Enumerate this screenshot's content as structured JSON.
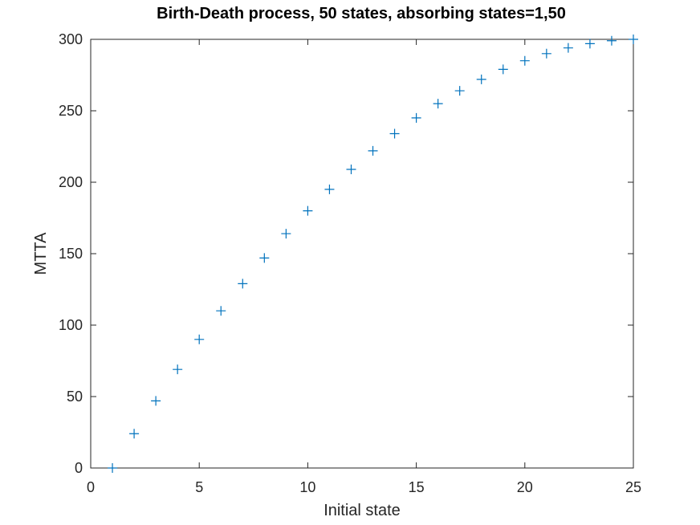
{
  "chart_data": {
    "type": "scatter",
    "title": "Birth-Death process, 50 states, absorbing states=1,50",
    "xlabel": "Initial state",
    "ylabel": "MTTA",
    "xlim": [
      0,
      25
    ],
    "ylim": [
      0,
      300
    ],
    "xticks": [
      "0",
      "5",
      "10",
      "15",
      "20",
      "25"
    ],
    "yticks": [
      "0",
      "50",
      "100",
      "150",
      "200",
      "250",
      "300"
    ],
    "marker": "plus",
    "grid": false,
    "series": [
      {
        "color": "#0072BD",
        "x": [
          1,
          2,
          3,
          4,
          5,
          6,
          7,
          8,
          9,
          10,
          11,
          12,
          13,
          14,
          15,
          16,
          17,
          18,
          19,
          20,
          21,
          22,
          23,
          24,
          25
        ],
        "y": [
          0,
          24,
          47,
          69,
          90,
          110,
          129,
          147,
          164,
          180,
          195,
          209,
          222,
          234,
          245,
          255,
          264,
          272,
          279,
          285,
          290,
          294,
          297,
          299,
          300
        ]
      }
    ]
  }
}
